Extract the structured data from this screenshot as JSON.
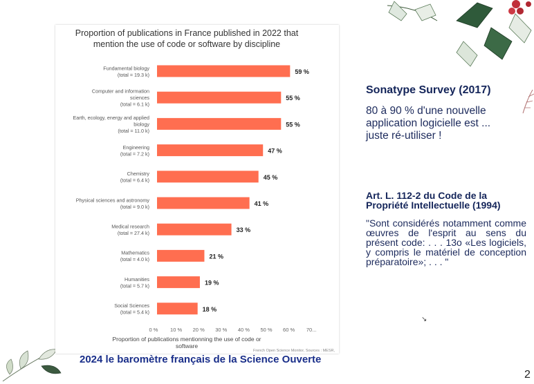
{
  "chart_data": {
    "type": "bar",
    "orientation": "horizontal",
    "title": "Proportion of publications in France published in 2022 that mention the use of code or software by discipline",
    "title_lines": [
      "Proportion of publications in France published in 2022 that",
      "mention the use of code or software by discipline"
    ],
    "categories": [
      {
        "name": [
          "Fundamental biology"
        ],
        "total": "(total = 19.3 k)"
      },
      {
        "name": [
          "Computer and information",
          "sciences"
        ],
        "total": "(total = 6.1 k)"
      },
      {
        "name": [
          "Earth, ecology, energy and applied",
          "biology"
        ],
        "total": "(total = 11.0 k)"
      },
      {
        "name": [
          "Engineering"
        ],
        "total": "(total = 7.2 k)"
      },
      {
        "name": [
          "Chemistry"
        ],
        "total": "(total = 6.4 k)"
      },
      {
        "name": [
          "Physical sciences and astronomy"
        ],
        "total": "(total = 9.0 k)"
      },
      {
        "name": [
          "Medical research"
        ],
        "total": "(total = 27.4 k)"
      },
      {
        "name": [
          "Mathematics"
        ],
        "total": "(total = 4.0 k)"
      },
      {
        "name": [
          "Humanities"
        ],
        "total": "(total = 5.7 k)"
      },
      {
        "name": [
          "Social Sciences"
        ],
        "total": "(total = 5.4 k)"
      }
    ],
    "values": [
      59,
      55,
      55,
      47,
      45,
      41,
      33,
      21,
      19,
      18
    ],
    "value_labels": [
      "59 %",
      "55 %",
      "55 %",
      "47 %",
      "45 %",
      "41 %",
      "33 %",
      "21 %",
      "19 %",
      "18 %"
    ],
    "xlim": [
      0,
      70
    ],
    "xticks": [
      "0 %",
      "10 %",
      "20 %",
      "30 %",
      "40 %",
      "50 %",
      "60 %",
      "70..."
    ],
    "xtick_values": [
      0,
      10,
      20,
      30,
      40,
      50,
      60,
      70
    ],
    "xlabel_lines": [
      "Proportion of publications mentionning the use of code or",
      "software"
    ],
    "source": "French Open Science Monitor, Sources : MESR,",
    "bar_color": "#ff6e50",
    "grid": false
  },
  "survey": {
    "title": "Sonatype Survey (2017)",
    "text": "80 à 90 % d'une nouvelle application logicielle est ... juste ré-utiliser !"
  },
  "law": {
    "title": "Art. L. 112-2 du Code de la Propriété Intellectuelle (1994)",
    "text": "\"Sont considérés notamment comme œuvres de l'esprit au sens du présent code: . . . 13o «Les logiciels, y compris le matériel de conception préparatoire»; . . . \""
  },
  "footer": {
    "title": "2024 le baromètre français de la Science Ouverte"
  },
  "page_number": "2",
  "cursor_glyph": "↘",
  "colors": {
    "accent_text": "#1c2a5c",
    "footer_text": "#1a2f8a",
    "bar": "#ff6e50"
  }
}
